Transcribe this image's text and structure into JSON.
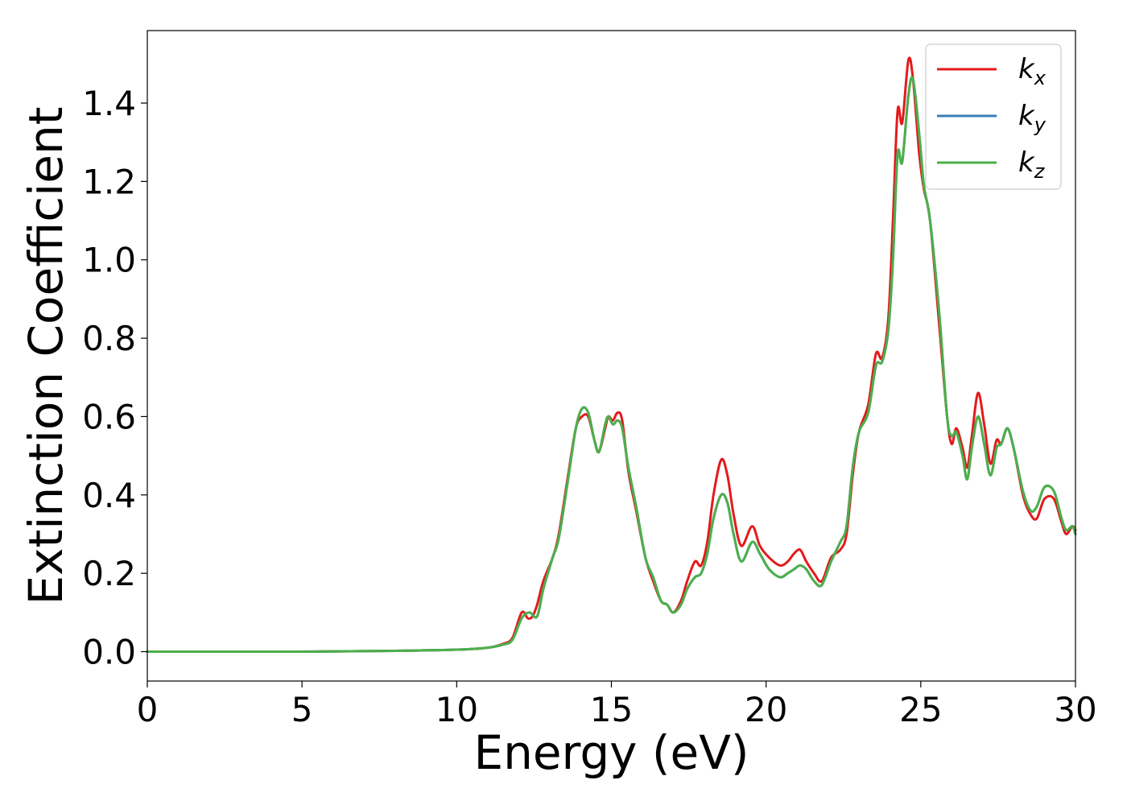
{
  "chart_data": {
    "type": "line",
    "title": "",
    "xlabel": "Energy (eV)",
    "ylabel": "Extinction Coefficient",
    "xlim": [
      0,
      30
    ],
    "ylim": [
      -0.075,
      1.585
    ],
    "xticks": [
      0,
      5,
      10,
      15,
      20,
      25,
      30
    ],
    "xtick_labels": [
      "0",
      "5",
      "10",
      "15",
      "20",
      "25",
      "30"
    ],
    "yticks": [
      0.0,
      0.2,
      0.4,
      0.6,
      0.8,
      1.0,
      1.2,
      1.4
    ],
    "ytick_labels": [
      "0.0",
      "0.2",
      "0.4",
      "0.6",
      "0.8",
      "1.0",
      "1.2",
      "1.4"
    ],
    "grid": false,
    "legend_position": "top-right",
    "series": [
      {
        "name": "k_x",
        "base": "k",
        "sub": "x",
        "color": "#e41a1c",
        "points": [
          [
            0,
            0
          ],
          [
            5,
            0
          ],
          [
            8,
            0.002
          ],
          [
            10,
            0.005
          ],
          [
            11,
            0.01
          ],
          [
            11.5,
            0.02
          ],
          [
            11.8,
            0.035
          ],
          [
            12.1,
            0.1
          ],
          [
            12.3,
            0.085
          ],
          [
            12.45,
            0.09
          ],
          [
            12.6,
            0.12
          ],
          [
            12.8,
            0.18
          ],
          [
            13.1,
            0.24
          ],
          [
            13.3,
            0.3
          ],
          [
            13.6,
            0.45
          ],
          [
            13.85,
            0.57
          ],
          [
            14.05,
            0.6
          ],
          [
            14.25,
            0.6
          ],
          [
            14.45,
            0.54
          ],
          [
            14.6,
            0.51
          ],
          [
            14.8,
            0.57
          ],
          [
            14.9,
            0.6
          ],
          [
            15.05,
            0.59
          ],
          [
            15.2,
            0.61
          ],
          [
            15.35,
            0.59
          ],
          [
            15.55,
            0.46
          ],
          [
            15.8,
            0.36
          ],
          [
            16.1,
            0.24
          ],
          [
            16.35,
            0.18
          ],
          [
            16.6,
            0.13
          ],
          [
            16.8,
            0.12
          ],
          [
            17.0,
            0.1
          ],
          [
            17.25,
            0.13
          ],
          [
            17.45,
            0.18
          ],
          [
            17.7,
            0.23
          ],
          [
            17.9,
            0.22
          ],
          [
            18.1,
            0.28
          ],
          [
            18.3,
            0.4
          ],
          [
            18.55,
            0.49
          ],
          [
            18.75,
            0.45
          ],
          [
            18.95,
            0.35
          ],
          [
            19.2,
            0.27
          ],
          [
            19.55,
            0.32
          ],
          [
            19.8,
            0.27
          ],
          [
            20.1,
            0.24
          ],
          [
            20.45,
            0.22
          ],
          [
            20.7,
            0.23
          ],
          [
            20.9,
            0.25
          ],
          [
            21.1,
            0.26
          ],
          [
            21.3,
            0.23
          ],
          [
            21.55,
            0.2
          ],
          [
            21.8,
            0.18
          ],
          [
            22.1,
            0.24
          ],
          [
            22.4,
            0.26
          ],
          [
            22.6,
            0.3
          ],
          [
            22.8,
            0.45
          ],
          [
            23.0,
            0.56
          ],
          [
            23.3,
            0.63
          ],
          [
            23.55,
            0.76
          ],
          [
            23.75,
            0.75
          ],
          [
            23.95,
            0.85
          ],
          [
            24.1,
            1.1
          ],
          [
            24.25,
            1.38
          ],
          [
            24.4,
            1.35
          ],
          [
            24.6,
            1.51
          ],
          [
            24.75,
            1.46
          ],
          [
            24.95,
            1.27
          ],
          [
            25.1,
            1.18
          ],
          [
            25.3,
            1.1
          ],
          [
            25.6,
            0.83
          ],
          [
            25.85,
            0.6
          ],
          [
            26.0,
            0.53
          ],
          [
            26.15,
            0.57
          ],
          [
            26.35,
            0.52
          ],
          [
            26.5,
            0.47
          ],
          [
            26.65,
            0.55
          ],
          [
            26.85,
            0.66
          ],
          [
            27.05,
            0.58
          ],
          [
            27.25,
            0.48
          ],
          [
            27.45,
            0.54
          ],
          [
            27.6,
            0.53
          ],
          [
            27.8,
            0.57
          ],
          [
            28.0,
            0.52
          ],
          [
            28.3,
            0.4
          ],
          [
            28.55,
            0.35
          ],
          [
            28.75,
            0.34
          ],
          [
            29.0,
            0.39
          ],
          [
            29.3,
            0.39
          ],
          [
            29.55,
            0.33
          ],
          [
            29.7,
            0.3
          ],
          [
            29.9,
            0.32
          ],
          [
            30,
            0.31
          ]
        ]
      },
      {
        "name": "k_y",
        "base": "k",
        "sub": "y",
        "color": "#377eb8",
        "points": [
          [
            0,
            0
          ],
          [
            5,
            0
          ],
          [
            8,
            0.002
          ],
          [
            10,
            0.005
          ],
          [
            11,
            0.01
          ],
          [
            11.5,
            0.018
          ],
          [
            11.8,
            0.03
          ],
          [
            12.1,
            0.085
          ],
          [
            12.35,
            0.1
          ],
          [
            12.6,
            0.09
          ],
          [
            12.8,
            0.16
          ],
          [
            13.1,
            0.24
          ],
          [
            13.3,
            0.29
          ],
          [
            13.6,
            0.44
          ],
          [
            13.85,
            0.57
          ],
          [
            14.05,
            0.62
          ],
          [
            14.25,
            0.61
          ],
          [
            14.45,
            0.54
          ],
          [
            14.6,
            0.51
          ],
          [
            14.8,
            0.58
          ],
          [
            14.9,
            0.6
          ],
          [
            15.05,
            0.58
          ],
          [
            15.2,
            0.59
          ],
          [
            15.35,
            0.57
          ],
          [
            15.55,
            0.47
          ],
          [
            15.8,
            0.37
          ],
          [
            16.1,
            0.24
          ],
          [
            16.35,
            0.19
          ],
          [
            16.6,
            0.13
          ],
          [
            16.8,
            0.12
          ],
          [
            17.0,
            0.1
          ],
          [
            17.25,
            0.12
          ],
          [
            17.45,
            0.16
          ],
          [
            17.7,
            0.19
          ],
          [
            17.9,
            0.2
          ],
          [
            18.1,
            0.25
          ],
          [
            18.3,
            0.34
          ],
          [
            18.55,
            0.4
          ],
          [
            18.75,
            0.38
          ],
          [
            18.95,
            0.3
          ],
          [
            19.2,
            0.23
          ],
          [
            19.55,
            0.28
          ],
          [
            19.8,
            0.25
          ],
          [
            20.1,
            0.21
          ],
          [
            20.45,
            0.19
          ],
          [
            20.7,
            0.2
          ],
          [
            20.9,
            0.21
          ],
          [
            21.1,
            0.22
          ],
          [
            21.3,
            0.21
          ],
          [
            21.55,
            0.18
          ],
          [
            21.8,
            0.17
          ],
          [
            22.1,
            0.23
          ],
          [
            22.4,
            0.28
          ],
          [
            22.6,
            0.32
          ],
          [
            22.8,
            0.47
          ],
          [
            23.0,
            0.56
          ],
          [
            23.3,
            0.61
          ],
          [
            23.55,
            0.73
          ],
          [
            23.75,
            0.74
          ],
          [
            23.95,
            0.82
          ],
          [
            24.1,
            1.0
          ],
          [
            24.25,
            1.27
          ],
          [
            24.4,
            1.25
          ],
          [
            24.6,
            1.42
          ],
          [
            24.75,
            1.46
          ],
          [
            24.95,
            1.32
          ],
          [
            25.1,
            1.19
          ],
          [
            25.3,
            1.1
          ],
          [
            25.6,
            0.86
          ],
          [
            25.85,
            0.6
          ],
          [
            26.0,
            0.55
          ],
          [
            26.15,
            0.56
          ],
          [
            26.35,
            0.5
          ],
          [
            26.5,
            0.44
          ],
          [
            26.65,
            0.52
          ],
          [
            26.85,
            0.6
          ],
          [
            27.05,
            0.53
          ],
          [
            27.25,
            0.45
          ],
          [
            27.45,
            0.52
          ],
          [
            27.6,
            0.53
          ],
          [
            27.8,
            0.57
          ],
          [
            28.0,
            0.52
          ],
          [
            28.3,
            0.41
          ],
          [
            28.55,
            0.36
          ],
          [
            28.75,
            0.37
          ],
          [
            29.0,
            0.42
          ],
          [
            29.3,
            0.41
          ],
          [
            29.55,
            0.34
          ],
          [
            29.7,
            0.31
          ],
          [
            29.9,
            0.32
          ],
          [
            30,
            0.3
          ]
        ]
      },
      {
        "name": "k_z",
        "base": "k",
        "sub": "z",
        "color": "#4daf4a",
        "points": [
          [
            0,
            0
          ],
          [
            5,
            0
          ],
          [
            8,
            0.002
          ],
          [
            10,
            0.005
          ],
          [
            11,
            0.01
          ],
          [
            11.5,
            0.018
          ],
          [
            11.8,
            0.03
          ],
          [
            12.1,
            0.085
          ],
          [
            12.35,
            0.1
          ],
          [
            12.6,
            0.09
          ],
          [
            12.8,
            0.16
          ],
          [
            13.1,
            0.24
          ],
          [
            13.3,
            0.29
          ],
          [
            13.6,
            0.44
          ],
          [
            13.85,
            0.57
          ],
          [
            14.05,
            0.62
          ],
          [
            14.25,
            0.61
          ],
          [
            14.45,
            0.54
          ],
          [
            14.6,
            0.51
          ],
          [
            14.8,
            0.58
          ],
          [
            14.9,
            0.6
          ],
          [
            15.05,
            0.58
          ],
          [
            15.2,
            0.59
          ],
          [
            15.35,
            0.57
          ],
          [
            15.55,
            0.47
          ],
          [
            15.8,
            0.37
          ],
          [
            16.1,
            0.24
          ],
          [
            16.35,
            0.19
          ],
          [
            16.6,
            0.13
          ],
          [
            16.8,
            0.12
          ],
          [
            17.0,
            0.1
          ],
          [
            17.25,
            0.12
          ],
          [
            17.45,
            0.16
          ],
          [
            17.7,
            0.19
          ],
          [
            17.9,
            0.2
          ],
          [
            18.1,
            0.25
          ],
          [
            18.3,
            0.34
          ],
          [
            18.55,
            0.4
          ],
          [
            18.75,
            0.38
          ],
          [
            18.95,
            0.3
          ],
          [
            19.2,
            0.23
          ],
          [
            19.55,
            0.28
          ],
          [
            19.8,
            0.25
          ],
          [
            20.1,
            0.21
          ],
          [
            20.45,
            0.19
          ],
          [
            20.7,
            0.2
          ],
          [
            20.9,
            0.21
          ],
          [
            21.1,
            0.22
          ],
          [
            21.3,
            0.21
          ],
          [
            21.55,
            0.18
          ],
          [
            21.8,
            0.17
          ],
          [
            22.1,
            0.23
          ],
          [
            22.4,
            0.28
          ],
          [
            22.6,
            0.32
          ],
          [
            22.8,
            0.47
          ],
          [
            23.0,
            0.56
          ],
          [
            23.3,
            0.61
          ],
          [
            23.55,
            0.73
          ],
          [
            23.75,
            0.74
          ],
          [
            23.95,
            0.82
          ],
          [
            24.1,
            1.0
          ],
          [
            24.25,
            1.27
          ],
          [
            24.4,
            1.25
          ],
          [
            24.6,
            1.42
          ],
          [
            24.75,
            1.46
          ],
          [
            24.95,
            1.32
          ],
          [
            25.1,
            1.19
          ],
          [
            25.3,
            1.1
          ],
          [
            25.6,
            0.86
          ],
          [
            25.85,
            0.6
          ],
          [
            26.0,
            0.55
          ],
          [
            26.15,
            0.56
          ],
          [
            26.35,
            0.5
          ],
          [
            26.5,
            0.44
          ],
          [
            26.65,
            0.52
          ],
          [
            26.85,
            0.6
          ],
          [
            27.05,
            0.53
          ],
          [
            27.25,
            0.45
          ],
          [
            27.45,
            0.52
          ],
          [
            27.6,
            0.53
          ],
          [
            27.8,
            0.57
          ],
          [
            28.0,
            0.52
          ],
          [
            28.3,
            0.41
          ],
          [
            28.55,
            0.36
          ],
          [
            28.75,
            0.37
          ],
          [
            29.0,
            0.42
          ],
          [
            29.3,
            0.41
          ],
          [
            29.55,
            0.34
          ],
          [
            29.7,
            0.31
          ],
          [
            29.9,
            0.32
          ],
          [
            30,
            0.3
          ]
        ]
      }
    ]
  }
}
